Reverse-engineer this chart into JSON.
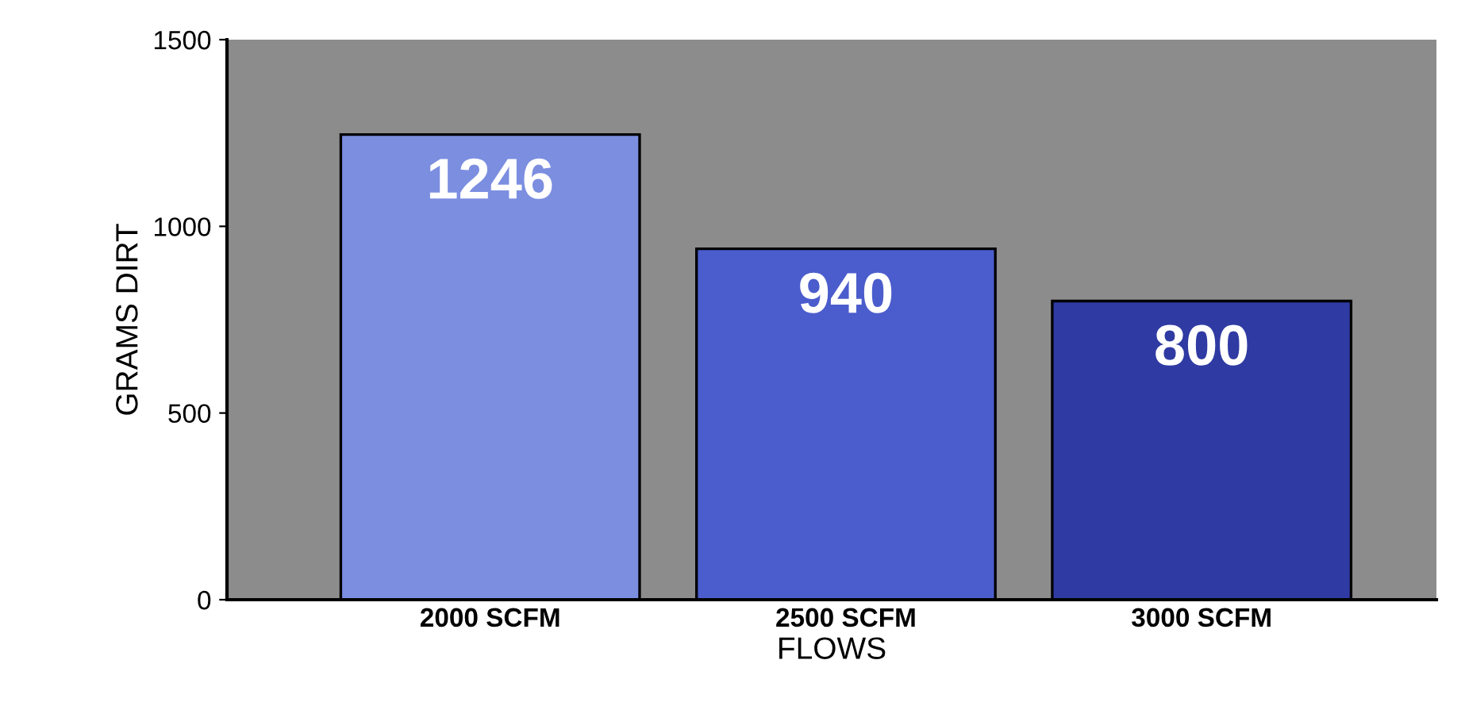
{
  "chart_data": {
    "type": "bar",
    "xlabel": "FLOWS",
    "ylabel": "GRAMS DIRT",
    "categories": [
      "2000 SCFM",
      "2500 SCFM",
      "3000 SCFM"
    ],
    "values": [
      1246,
      940,
      800
    ],
    "colors": [
      "#7b8ee0",
      "#4b5dcc",
      "#2f3ba3"
    ],
    "ylim": [
      0,
      1500
    ],
    "yticks": [
      0,
      500,
      1000,
      1500
    ],
    "data_labels": true,
    "grid": false
  }
}
